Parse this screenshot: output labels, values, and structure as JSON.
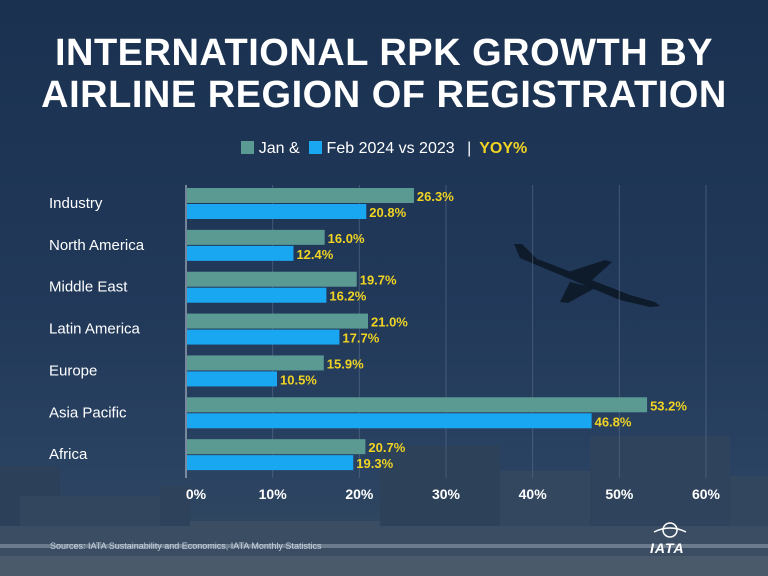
{
  "title_line1": "INTERNATIONAL RPK GROWTH BY",
  "title_line2": "AIRLINE REGION OF REGISTRATION",
  "legend": {
    "jan_label": "Jan &",
    "feb_label": "Feb 2024 vs 2023",
    "separator": "|",
    "yoy_label": "YOY%"
  },
  "source": "Sources: IATA Sustainability and Economics, IATA Monthly Statistics",
  "logo_text": "IATA",
  "colors": {
    "jan": "#5a9a93",
    "feb": "#1aa7f2",
    "value_label": "#f0d323",
    "grid": "#5b6f88",
    "text": "#ffffff"
  },
  "chart_data": {
    "type": "bar",
    "orientation": "horizontal",
    "categories": [
      "Industry",
      "North America",
      "Middle East",
      "Latin America",
      "Europe",
      "Asia Pacific",
      "Africa"
    ],
    "series": [
      {
        "name": "Jan",
        "values": [
          26.3,
          16.0,
          19.7,
          21.0,
          15.9,
          53.2,
          20.7
        ],
        "labels": [
          "26.3%",
          "16.0%",
          "19.7%",
          "21.0%",
          "15.9%",
          "53.2%",
          "20.7%"
        ]
      },
      {
        "name": "Feb 2024 vs 2023",
        "values": [
          20.8,
          12.4,
          16.2,
          17.7,
          10.5,
          46.8,
          19.3
        ],
        "labels": [
          "20.8%",
          "12.4%",
          "16.2%",
          "17.7%",
          "10.5%",
          "46.8%",
          "19.3%"
        ]
      }
    ],
    "xlim": [
      0,
      60
    ],
    "xticks": [
      "0%",
      "10%",
      "20%",
      "30%",
      "40%",
      "50%",
      "60%"
    ],
    "xtick_values": [
      0,
      10,
      20,
      30,
      40,
      50,
      60
    ],
    "grid": true,
    "legend_position": "top"
  }
}
